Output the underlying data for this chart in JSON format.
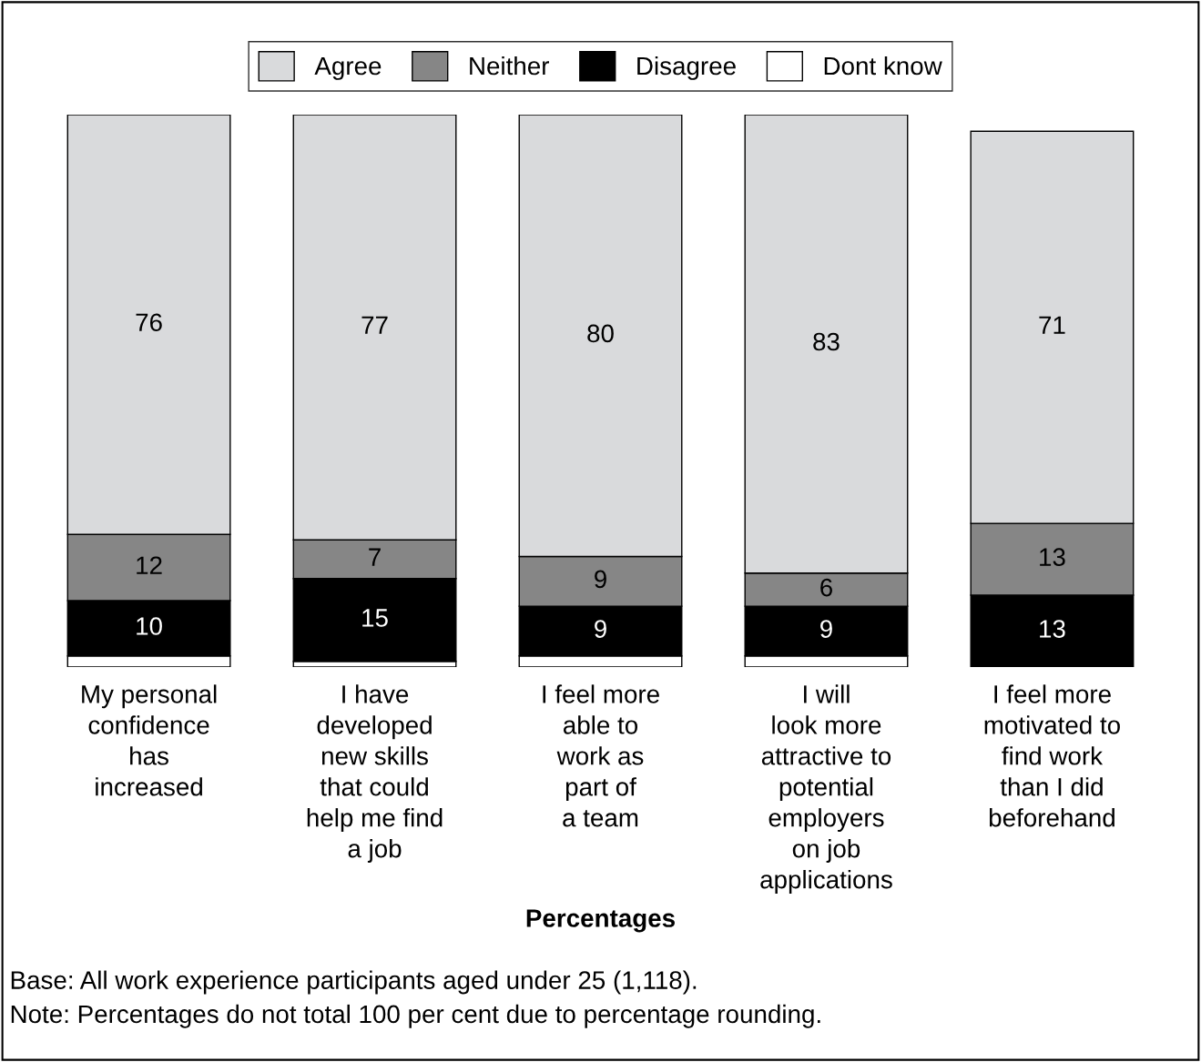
{
  "chart_data": {
    "type": "bar",
    "stacked": true,
    "xlabel": "Percentages",
    "categories": [
      "My personal\nconfidence\nhas\nincreased",
      "I have\ndeveloped\nnew skills\nthat could\nhelp me find\na job",
      "I feel more\nable to\nwork as\npart of\na team",
      "I will\nlook more\nattractive to\npotential\nemployers\non job\napplications",
      "I feel more\nmotivated to\nfind work\nthan I did\nbeforehand"
    ],
    "series": [
      {
        "name": "Dont know",
        "color": "#ffffff",
        "values": [
          2,
          1,
          2,
          2,
          0
        ],
        "value_labels": [
          null,
          null,
          null,
          null,
          null
        ]
      },
      {
        "name": "Disagree",
        "color": "#000000",
        "values": [
          10,
          15,
          9,
          9,
          13
        ],
        "value_labels": [
          "10",
          "15",
          "9",
          "9",
          "13"
        ]
      },
      {
        "name": "Neither",
        "color": "#868686",
        "values": [
          12,
          7,
          9,
          6,
          13
        ],
        "value_labels": [
          "12",
          "7",
          "9",
          "6",
          "13"
        ]
      },
      {
        "name": "Agree",
        "color": "#d9dadc",
        "values": [
          76,
          77,
          80,
          83,
          71
        ],
        "value_labels": [
          "76",
          "77",
          "80",
          "83",
          "71"
        ]
      }
    ],
    "legend": "top",
    "grid": false,
    "annotations": [
      "Base: All work experience participants aged under 25 (1,118).",
      "Note: Percentages do not total 100 per cent due to percentage rounding."
    ]
  }
}
